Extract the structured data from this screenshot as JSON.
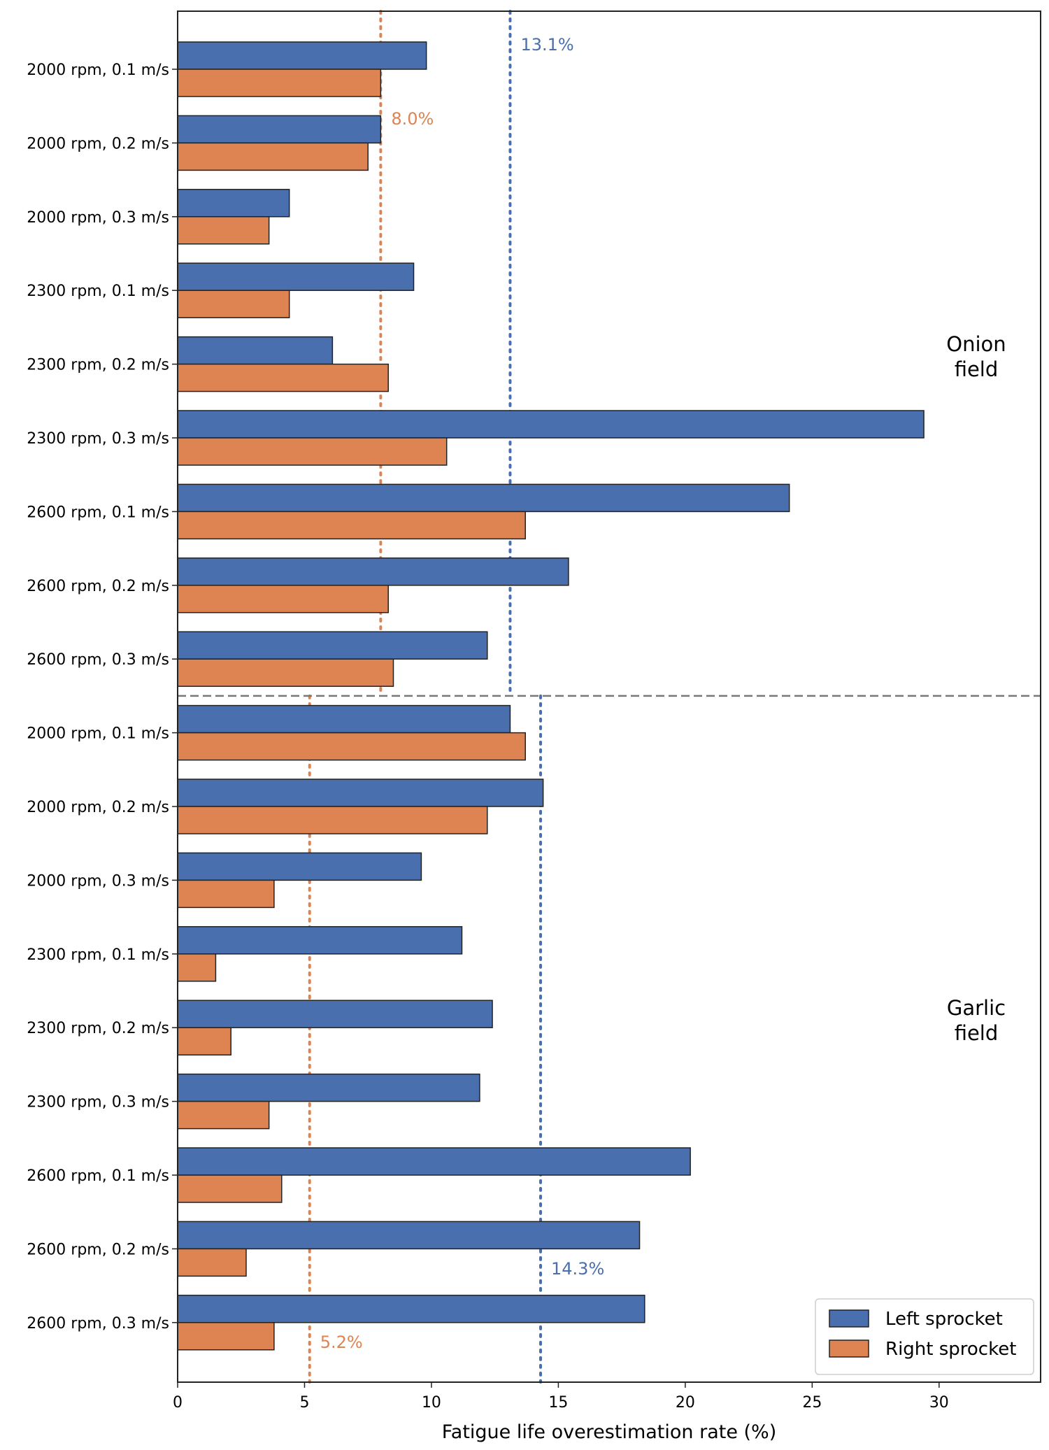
{
  "chart_data": {
    "type": "bar",
    "orientation": "horizontal",
    "xlabel": "Fatigue life overestimation rate (%)",
    "xlim": [
      0,
      34
    ],
    "xticks": [
      0,
      5,
      10,
      15,
      20,
      25,
      30
    ],
    "grid": false,
    "legend_position": "lower-right",
    "colors": {
      "left": "#4a6fae",
      "right": "#dd8452",
      "edge": "#222222",
      "divider": "#777777"
    },
    "groups": [
      {
        "label_lines": [
          "Onion",
          "field"
        ],
        "categories": [
          "2000 rpm, 0.1 m/s",
          "2000 rpm, 0.2 m/s",
          "2000 rpm, 0.3 m/s",
          "2300 rpm, 0.1 m/s",
          "2300 rpm, 0.2 m/s",
          "2300 rpm, 0.3 m/s",
          "2600 rpm, 0.1 m/s",
          "2600 rpm, 0.2 m/s",
          "2600 rpm, 0.3 m/s"
        ],
        "left_values": [
          9.8,
          8.0,
          4.4,
          9.3,
          6.1,
          29.4,
          24.1,
          15.4,
          12.2
        ],
        "right_values": [
          8.0,
          7.5,
          3.6,
          4.4,
          8.3,
          10.6,
          13.7,
          8.3,
          8.5
        ],
        "left_mean": 13.1,
        "right_mean": 8.0,
        "left_mean_label": "13.1%",
        "right_mean_label": "8.0%"
      },
      {
        "label_lines": [
          "Garlic",
          "field"
        ],
        "categories": [
          "2000 rpm, 0.1 m/s",
          "2000 rpm, 0.2 m/s",
          "2000 rpm, 0.3 m/s",
          "2300 rpm, 0.1 m/s",
          "2300 rpm, 0.2 m/s",
          "2300 rpm, 0.3 m/s",
          "2600 rpm, 0.1 m/s",
          "2600 rpm, 0.2 m/s",
          "2600 rpm, 0.3 m/s"
        ],
        "left_values": [
          13.1,
          14.4,
          9.6,
          11.2,
          12.4,
          11.9,
          20.2,
          18.2,
          18.4
        ],
        "right_values": [
          13.7,
          12.2,
          3.8,
          1.5,
          2.1,
          3.6,
          4.1,
          2.7,
          3.8
        ],
        "left_mean": 14.3,
        "right_mean": 5.2,
        "left_mean_label": "14.3%",
        "right_mean_label": "5.2%"
      }
    ],
    "series": [
      {
        "name": "Left sprocket",
        "color": "#4a6fae"
      },
      {
        "name": "Right sprocket",
        "color": "#dd8452"
      }
    ]
  }
}
